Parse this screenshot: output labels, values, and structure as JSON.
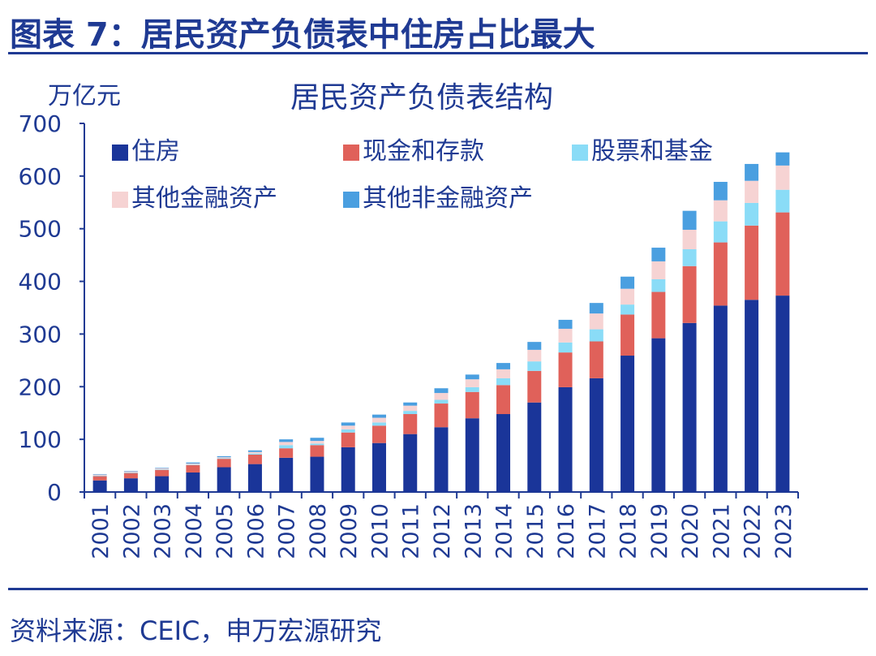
{
  "header": {
    "figure_title": "图表 7：居民资产负债表中住房占比最大"
  },
  "footer": {
    "source": "资料来源：CEIC，申万宏源研究"
  },
  "colors": {
    "brand": "#1f3a93",
    "housing": "#1a3599",
    "cash": "#e0615a",
    "stocks": "#8adcf7",
    "other_fin": "#f6d3d3",
    "other_nonfin": "#4a9fe0"
  },
  "chart_data": {
    "type": "bar",
    "stacked": true,
    "title": "居民资产负债表结构",
    "ylabel": "万亿元",
    "xlabel": "",
    "ylim": [
      0,
      700
    ],
    "yticks": [
      0,
      100,
      200,
      300,
      400,
      500,
      600,
      700
    ],
    "grid": false,
    "legend_position": "top-left",
    "categories": [
      "2001",
      "2002",
      "2003",
      "2004",
      "2005",
      "2006",
      "2007",
      "2008",
      "2009",
      "2010",
      "2011",
      "2012",
      "2013",
      "2014",
      "2015",
      "2016",
      "2017",
      "2018",
      "2019",
      "2020",
      "2021",
      "2022",
      "2023"
    ],
    "series": [
      {
        "name": "住房",
        "color_key": "housing",
        "values": [
          22,
          26,
          30,
          37,
          47,
          53,
          65,
          67,
          85,
          93,
          110,
          123,
          140,
          148,
          170,
          199,
          216,
          259,
          292,
          321,
          354,
          365,
          373
        ]
      },
      {
        "name": "现金和存款",
        "color_key": "cash",
        "values": [
          8,
          10,
          12,
          14,
          16,
          18,
          18,
          22,
          28,
          33,
          38,
          45,
          50,
          55,
          60,
          66,
          70,
          78,
          88,
          108,
          120,
          141,
          158
        ]
      },
      {
        "name": "股票和基金",
        "color_key": "stocks",
        "values": [
          1,
          1,
          1,
          1,
          1,
          2,
          6,
          3,
          6,
          6,
          6,
          7,
          9,
          13,
          18,
          19,
          23,
          19,
          24,
          32,
          40,
          43,
          43
        ]
      },
      {
        "name": "其他金融资产",
        "color_key": "other_fin",
        "values": [
          2,
          2,
          2,
          2,
          2,
          3,
          6,
          5,
          7,
          9,
          10,
          13,
          15,
          17,
          22,
          26,
          30,
          30,
          34,
          37,
          40,
          42,
          46
        ]
      },
      {
        "name": "其他非金融资产",
        "color_key": "other_nonfin",
        "values": [
          1,
          1,
          1,
          2,
          2,
          3,
          5,
          6,
          6,
          6,
          6,
          9,
          9,
          12,
          15,
          17,
          20,
          23,
          26,
          36,
          35,
          32,
          25
        ]
      }
    ]
  }
}
